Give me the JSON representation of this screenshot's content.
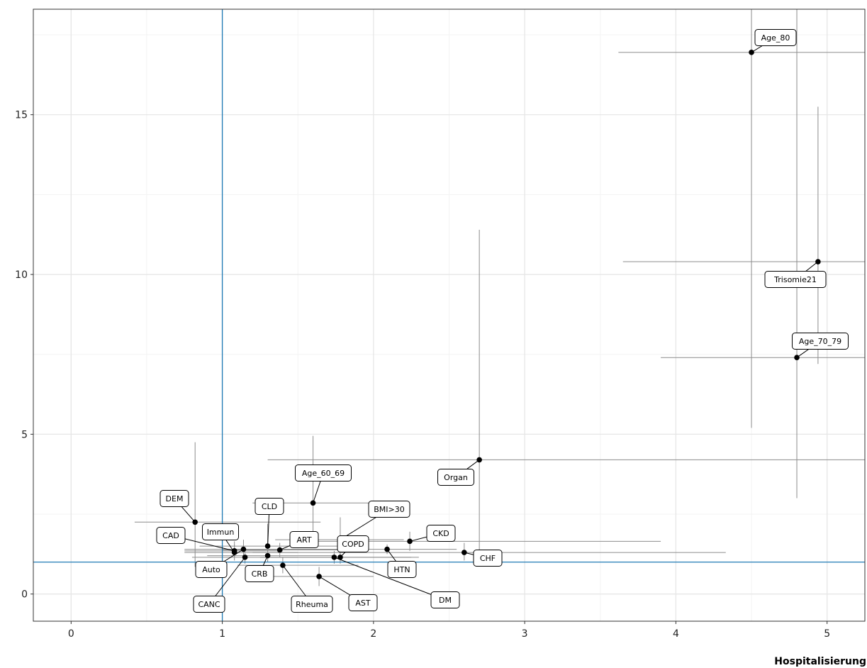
{
  "chart_data": {
    "type": "scatter",
    "title": "",
    "xlabel": "Hospitalisierung",
    "ylabel": "",
    "xlim": [
      -0.25,
      5.25
    ],
    "ylim": [
      -0.85,
      18.3
    ],
    "x_ticks": [
      0,
      1,
      2,
      3,
      4,
      5
    ],
    "y_ticks": [
      0,
      5,
      10,
      15
    ],
    "grid": true,
    "reference_lines": {
      "vertical_x": 1,
      "horizontal_y": 1,
      "color": "#1f7ab5"
    },
    "colors": {
      "point": "#000000",
      "error_bar": "#8c8c8c",
      "grid_major": "#e6e6e6",
      "grid_minor": "#f3f3f3",
      "panel_border": "#333333"
    },
    "points": [
      {
        "label": "Age_80",
        "x": 4.5,
        "y": 16.95,
        "x_err": [
          3.62,
          5.25
        ],
        "y_err": [
          5.2,
          18.3
        ]
      },
      {
        "label": "Trisomie21",
        "x": 4.94,
        "y": 10.4,
        "x_err": [
          3.65,
          5.25
        ],
        "y_err": [
          7.2,
          15.25
        ]
      },
      {
        "label": "Age_70_79",
        "x": 4.8,
        "y": 7.4,
        "x_err": [
          3.9,
          5.25
        ],
        "y_err": [
          3.0,
          18.3
        ]
      },
      {
        "label": "Organ",
        "x": 2.7,
        "y": 4.2,
        "x_err": [
          1.3,
          5.25
        ],
        "y_err": [
          1.05,
          11.4
        ]
      },
      {
        "label": "Age_60_69",
        "x": 1.6,
        "y": 2.85,
        "x_err": [
          1.2,
          2.1
        ],
        "y_err": [
          1.65,
          4.95
        ]
      },
      {
        "label": "DEM",
        "x": 0.82,
        "y": 2.25,
        "x_err": [
          0.42,
          1.65
        ],
        "y_err": [
          0.85,
          4.75
        ]
      },
      {
        "label": "CLD",
        "x": 1.3,
        "y": 1.5,
        "x_err": [
          0.85,
          1.95
        ],
        "y_err": [
          1.0,
          2.2
        ]
      },
      {
        "label": "BMI>30",
        "x": 1.78,
        "y": 1.7,
        "x_err": [
          1.35,
          2.2
        ],
        "y_err": [
          1.25,
          2.4
        ]
      },
      {
        "label": "CKD",
        "x": 2.24,
        "y": 1.65,
        "x_err": [
          1.5,
          3.9
        ],
        "y_err": [
          1.35,
          1.95
        ]
      },
      {
        "label": "CHF",
        "x": 2.6,
        "y": 1.3,
        "x_err": [
          1.2,
          4.33
        ],
        "y_err": [
          1.05,
          1.6
        ]
      },
      {
        "label": "Immun",
        "x": 1.08,
        "y": 1.3,
        "x_err": [
          0.75,
          1.5
        ],
        "y_err": [
          1.05,
          1.65
        ]
      },
      {
        "label": "CAD",
        "x": 1.08,
        "y": 1.35,
        "x_err": [
          0.75,
          1.4
        ],
        "y_err": [
          1.15,
          1.55
        ]
      },
      {
        "label": "ART",
        "x": 1.38,
        "y": 1.38,
        "x_err": [
          1.0,
          1.8
        ],
        "y_err": [
          1.15,
          1.6
        ]
      },
      {
        "label": "COPD",
        "x": 1.78,
        "y": 1.15,
        "x_err": [
          1.25,
          2.3
        ],
        "y_err": [
          0.95,
          1.4
        ]
      },
      {
        "label": "HTN",
        "x": 2.09,
        "y": 1.4,
        "x_err": [
          1.6,
          2.55
        ],
        "y_err": [
          1.25,
          1.55
        ]
      },
      {
        "label": "DM",
        "x": 1.74,
        "y": 1.15,
        "x_err": [
          1.25,
          2.25
        ],
        "y_err": [
          0.95,
          1.35
        ]
      },
      {
        "label": "Auto",
        "x": 1.14,
        "y": 1.4,
        "x_err": [
          0.75,
          1.6
        ],
        "y_err": [
          1.15,
          1.7
        ]
      },
      {
        "label": "CANC",
        "x": 1.15,
        "y": 1.15,
        "x_err": [
          0.8,
          1.5
        ],
        "y_err": [
          0.95,
          1.35
        ]
      },
      {
        "label": "CRB",
        "x": 1.3,
        "y": 1.2,
        "x_err": [
          0.9,
          1.75
        ],
        "y_err": [
          1.0,
          1.45
        ]
      },
      {
        "label": "Rheuma",
        "x": 1.4,
        "y": 0.9,
        "x_err": [
          1.1,
          1.9
        ],
        "y_err": [
          0.65,
          1.15
        ]
      },
      {
        "label": "AST",
        "x": 1.64,
        "y": 0.55,
        "x_err": [
          1.25,
          2.0
        ],
        "y_err": [
          0.25,
          0.85
        ]
      }
    ]
  }
}
